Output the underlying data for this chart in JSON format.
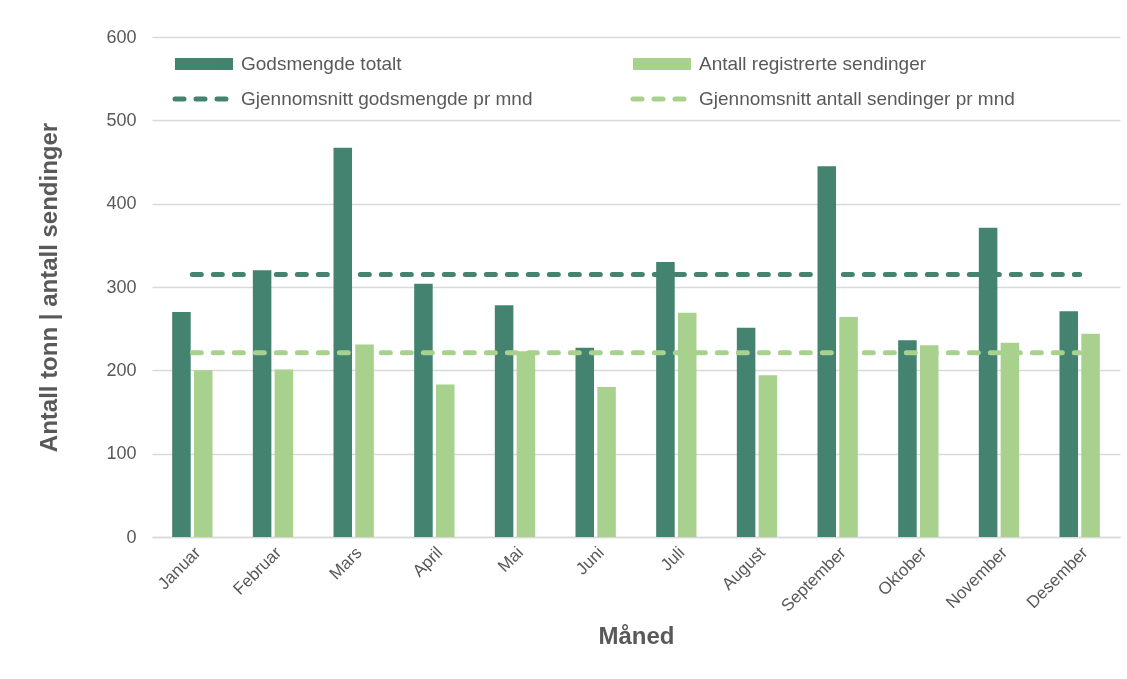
{
  "chart_data": {
    "type": "bar",
    "xlabel": "Måned",
    "ylabel": "Antall tonn | antall sendinger",
    "categories": [
      "Januar",
      "Februar",
      "Mars",
      "April",
      "Mai",
      "Juni",
      "Juli",
      "August",
      "September",
      "Oktober",
      "November",
      "Desember"
    ],
    "series": [
      {
        "name": "Godsmengde totalt",
        "color": "#43836f",
        "values": [
          270,
          320,
          467,
          304,
          278,
          227,
          330,
          251,
          445,
          236,
          371,
          271
        ]
      },
      {
        "name": "Antall registrerte sendinger",
        "color": "#a9d18e",
        "values": [
          200,
          201,
          231,
          183,
          223,
          180,
          269,
          194,
          264,
          230,
          233,
          244
        ]
      },
      {
        "name": "Gjennomsnitt godsmengde pr mnd",
        "type": "line",
        "line_style": "dashed",
        "color": "#43836f",
        "values": [
          315,
          315,
          315,
          315,
          315,
          315,
          315,
          315,
          315,
          315,
          315,
          315
        ]
      },
      {
        "name": "Gjennomsnitt antall sendinger pr mnd",
        "type": "line",
        "line_style": "dashed",
        "color": "#a9d18e",
        "values": [
          221,
          221,
          221,
          221,
          221,
          221,
          221,
          221,
          221,
          221,
          221,
          221
        ]
      }
    ],
    "ylim": [
      0,
      600
    ],
    "yticks": [
      0,
      100,
      200,
      300,
      400,
      500,
      600
    ],
    "grid": "y",
    "legend": "top"
  }
}
